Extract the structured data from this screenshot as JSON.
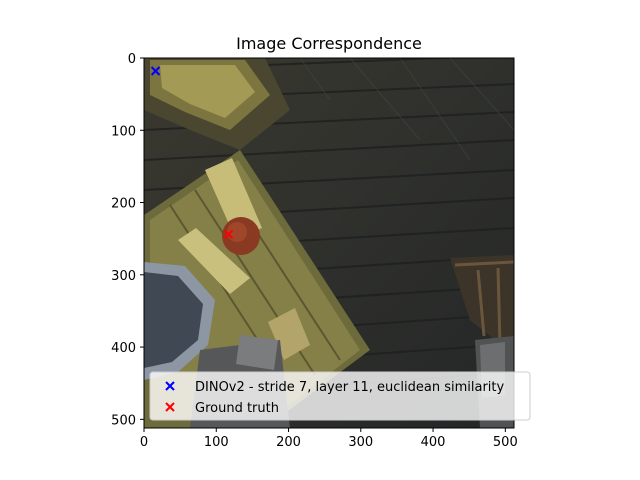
{
  "chart_data": {
    "type": "scatter",
    "title": "Image Correspondence",
    "xlabel": "",
    "ylabel": "",
    "xlim": [
      0,
      512
    ],
    "ylim": [
      512,
      0
    ],
    "x_ticks": [
      0,
      100,
      200,
      300,
      400,
      500
    ],
    "y_ticks": [
      0,
      100,
      200,
      300,
      400,
      500
    ],
    "grid": false,
    "legend_position": "lower-right",
    "background": "dark top-down photo of a wooden floor with a table, chair, round red object and blue bowl",
    "series": [
      {
        "name": "DINOv2 - stride 7, layer 11, euclidean similarity",
        "marker": "x",
        "color": "#0000ff",
        "points": [
          {
            "x": 16,
            "y": 18
          }
        ]
      },
      {
        "name": "Ground truth",
        "marker": "x",
        "color": "#ff0000",
        "points": [
          {
            "x": 117,
            "y": 244
          }
        ]
      }
    ]
  }
}
